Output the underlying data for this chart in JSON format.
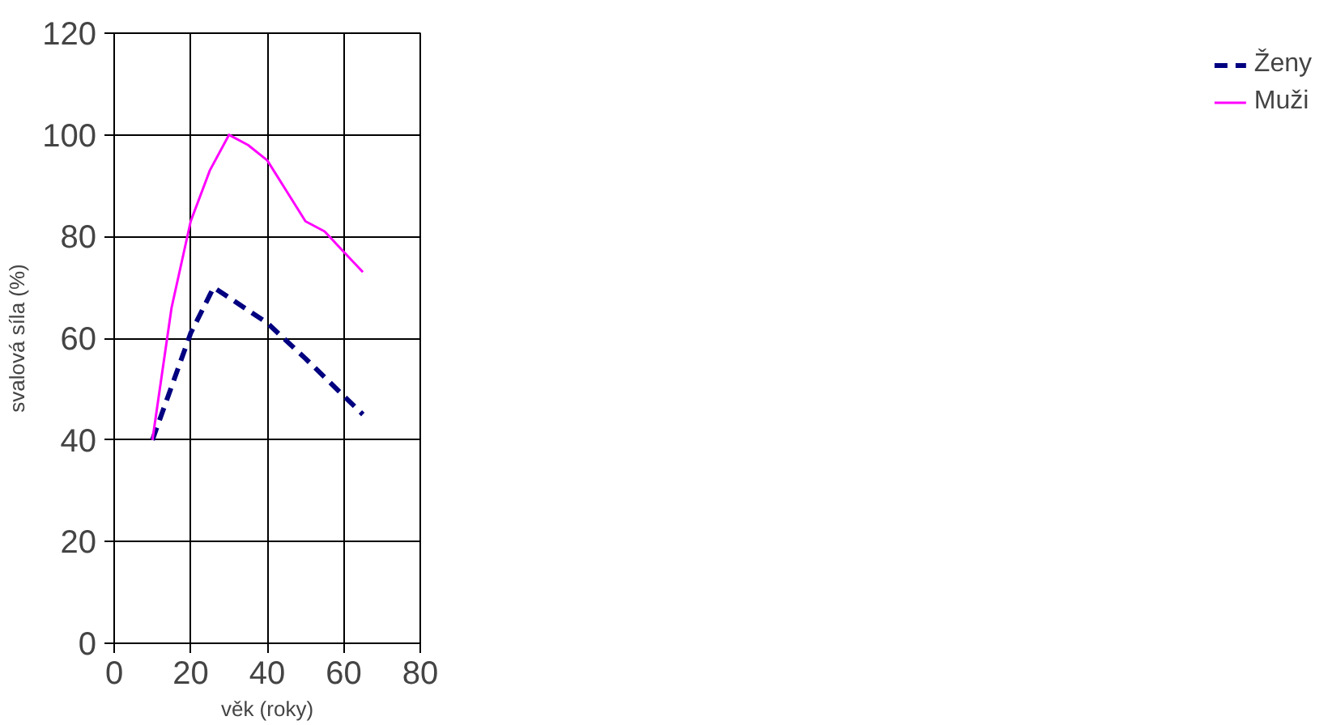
{
  "chart_data": {
    "type": "line",
    "xlabel": "věk (roky)",
    "ylabel": "svalová síla (%)",
    "xlim": [
      0,
      80
    ],
    "ylim": [
      0,
      120
    ],
    "xticks": [
      0,
      20,
      40,
      60,
      80
    ],
    "yticks": [
      0,
      20,
      40,
      60,
      80,
      100,
      120
    ],
    "grid": true,
    "legend": "right",
    "series": [
      {
        "name": "Ženy",
        "color": "#000080",
        "line_style": "dashed",
        "x": [
          10,
          20,
          26,
          30,
          40,
          50,
          65
        ],
        "values": [
          40,
          61,
          70,
          68,
          63,
          56,
          45
        ]
      },
      {
        "name": "Muži",
        "color": "#ff00ff",
        "line_style": "solid",
        "x": [
          10,
          15,
          20,
          25,
          30,
          35,
          40,
          45,
          50,
          55,
          60,
          65
        ],
        "values": [
          40,
          66,
          83,
          93,
          100,
          98,
          95,
          89,
          83,
          81,
          77,
          73
        ]
      }
    ]
  }
}
